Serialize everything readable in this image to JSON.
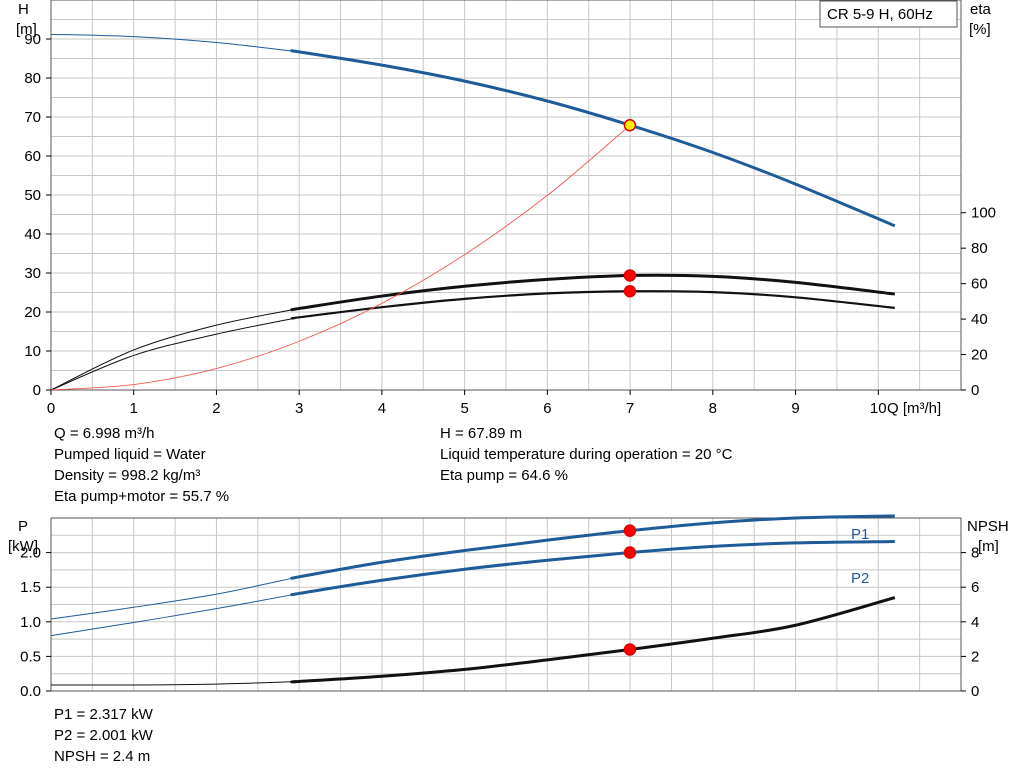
{
  "model_label": "CR 5-9 H, 60Hz",
  "colors": {
    "head": "#1f5a99",
    "efficiency": "#111111",
    "efficiency_thin": "#111111",
    "system": "#f05a4f",
    "p1": "#1f5a99",
    "p2": "#1f5a99",
    "npsh": "#111111",
    "duty_point": "#ff0000",
    "duty_point_head": "#ffee00",
    "grid": "#c8c8c8"
  },
  "top_info": {
    "left": [
      "Q = 6.998 m³/h",
      "Pumped liquid = Water",
      "Density = 998.2 kg/m³",
      "Eta pump+motor = 55.7 %"
    ],
    "right": [
      "H = 67.89 m",
      "Liquid temperature during operation = 20 °C",
      "Eta pump = 64.6 %"
    ]
  },
  "bottom_info": [
    "P1 = 2.317 kW",
    "P2 = 2.001 kW",
    "NPSH = 2.4 m"
  ],
  "chart_data": [
    {
      "type": "line",
      "title": "",
      "xlabel": "Q [m³/h]",
      "ylabel": "H [m]",
      "ylabel_lines": [
        "H",
        "[m]"
      ],
      "y2label_lines": [
        "eta",
        "[%]"
      ],
      "xlim": [
        0,
        11
      ],
      "ylim": [
        0,
        100
      ],
      "xticks": [
        0,
        1,
        2,
        3,
        4,
        5,
        6,
        7,
        8,
        9,
        10
      ],
      "yticks": [
        0,
        10,
        20,
        30,
        40,
        50,
        60,
        70,
        80,
        90
      ],
      "y2lim": [
        0,
        220
      ],
      "y2ticks": [
        0,
        20,
        40,
        60,
        80,
        100
      ],
      "grid": true,
      "series": [
        {
          "key": "head",
          "x": [
            0,
            1,
            2,
            3,
            4,
            5,
            6,
            7,
            8,
            9,
            10.2
          ],
          "y": [
            91.2,
            90.6,
            89.1,
            86.7,
            83.3,
            79.2,
            74.1,
            67.9,
            60.9,
            52.8,
            42.1
          ],
          "axis": "y",
          "operating_from": 2.95
        },
        {
          "key": "efficiency",
          "x": [
            0,
            1,
            2,
            3,
            4,
            5,
            6,
            7,
            8,
            9,
            10.2
          ],
          "y": [
            0,
            22.6,
            36.6,
            46.0,
            53.0,
            58.5,
            62.4,
            64.6,
            64.1,
            60.7,
            54.1
          ],
          "axis": "y2",
          "operating_from": 2.95
        },
        {
          "key": "efficiency_thin",
          "x": [
            0,
            1,
            2,
            3,
            4,
            5,
            6,
            7,
            8,
            9,
            10.2
          ],
          "y": [
            0,
            19.5,
            31.5,
            41.0,
            46.7,
            51.4,
            54.5,
            55.7,
            55.2,
            52.3,
            46.3
          ],
          "axis": "y2",
          "operating_from": 2.95
        },
        {
          "key": "system",
          "x": [
            0,
            1,
            2,
            3,
            4,
            5,
            6,
            7
          ],
          "y": [
            0,
            1.4,
            5.5,
            12.5,
            22.2,
            34.7,
            49.9,
            67.9
          ],
          "axis": "y"
        }
      ],
      "duty_points": [
        {
          "x": 6.998,
          "y": 67.89,
          "axis": "y",
          "key": "duty_point_head"
        },
        {
          "x": 6.998,
          "y": 64.6,
          "axis": "y2",
          "key": "duty_point"
        },
        {
          "x": 6.998,
          "y": 55.7,
          "axis": "y2",
          "key": "duty_point"
        }
      ]
    },
    {
      "type": "line",
      "title": "",
      "xlabel": "",
      "ylabel": "P [kW]",
      "ylabel_lines": [
        "P",
        "[kW]"
      ],
      "y2label_lines": [
        "NPSH",
        "[m]"
      ],
      "xlim": [
        0,
        11
      ],
      "ylim": [
        0,
        2.5
      ],
      "yticks": [
        0.0,
        0.5,
        1.0,
        1.5,
        2.0
      ],
      "ytick_labels": [
        "0.0",
        "0.5",
        "1.0",
        "1.5",
        "2.0"
      ],
      "y2lim": [
        0,
        10
      ],
      "y2ticks": [
        0,
        2,
        4,
        6,
        8
      ],
      "grid": true,
      "series": [
        {
          "name": "P1",
          "key": "p1",
          "x": [
            0,
            1,
            2,
            3,
            4,
            5,
            6,
            7,
            8,
            9,
            10.2
          ],
          "y": [
            1.04,
            1.21,
            1.4,
            1.65,
            1.86,
            2.03,
            2.18,
            2.317,
            2.43,
            2.5,
            2.53
          ],
          "axis": "y",
          "operating_from": 2.95
        },
        {
          "name": "P2",
          "key": "p2",
          "x": [
            0,
            1,
            2,
            3,
            4,
            5,
            6,
            7,
            8,
            9,
            10.2
          ],
          "y": [
            0.8,
            0.99,
            1.19,
            1.41,
            1.6,
            1.76,
            1.89,
            2.001,
            2.09,
            2.14,
            2.16
          ],
          "axis": "y",
          "operating_from": 2.95
        },
        {
          "key": "npsh",
          "x": [
            0,
            1,
            2,
            3,
            4,
            5,
            6,
            7,
            8,
            9,
            10.2
          ],
          "y": [
            0.35,
            0.35,
            0.4,
            0.55,
            0.85,
            1.25,
            1.8,
            2.4,
            3.05,
            3.8,
            5.4
          ],
          "axis": "y2",
          "operating_from": 2.95
        }
      ],
      "duty_points": [
        {
          "x": 6.998,
          "y": 2.317,
          "axis": "y",
          "key": "duty_point"
        },
        {
          "x": 6.998,
          "y": 2.001,
          "axis": "y",
          "key": "duty_point"
        },
        {
          "x": 6.998,
          "y": 2.4,
          "axis": "y2",
          "key": "duty_point"
        }
      ]
    }
  ]
}
